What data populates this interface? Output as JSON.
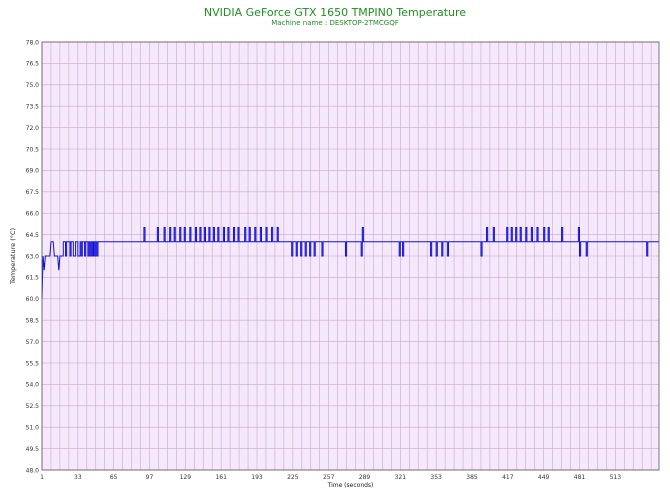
{
  "chart_data": {
    "type": "line",
    "title": "NVIDIA GeForce GTX 1650 TMPIN0 Temperature",
    "subtitle": "Machine name : DESKTOP-2TMCGQF",
    "xlabel": "Time (seconds)",
    "ylabel": "Temperature (°C)",
    "xlim": [
      1,
      552
    ],
    "ylim": [
      48.0,
      78.0
    ],
    "x_ticks": [
      "1",
      "33",
      "65",
      "97",
      "129",
      "161",
      "193",
      "225",
      "257",
      "289",
      "321",
      "353",
      "385",
      "417",
      "449",
      "481",
      "513"
    ],
    "y_ticks": [
      "48.0",
      "49.5",
      "51.0",
      "52.5",
      "54.0",
      "55.5",
      "57.0",
      "58.5",
      "60.0",
      "61.5",
      "63.0",
      "64.5",
      "66.0",
      "67.5",
      "69.0",
      "70.5",
      "72.0",
      "73.5",
      "75.0",
      "76.5",
      "78.0"
    ],
    "grid": true,
    "colors": {
      "background": "#f6e8fb",
      "grid": "#c9a8cf",
      "line": "#1010d8",
      "title": "#1f8f1f"
    },
    "series": [
      {
        "baseline": 64.0,
        "start": [
          [
            1,
            60.0
          ],
          [
            2,
            63.0
          ],
          [
            3,
            62.0
          ],
          [
            4,
            63.0
          ],
          [
            5,
            63.0
          ],
          [
            8,
            63.0
          ],
          [
            9,
            64.0
          ],
          [
            11,
            64.0
          ],
          [
            12,
            63.0
          ],
          [
            15,
            63.0
          ],
          [
            16,
            62.0
          ],
          [
            17,
            63.0
          ]
        ],
        "dips_to_63": [
          [
            17,
            20
          ],
          [
            22,
            23
          ],
          [
            26,
            27
          ],
          [
            29,
            31
          ],
          [
            33,
            35
          ],
          [
            36,
            37
          ],
          [
            39,
            40
          ],
          [
            42,
            43
          ],
          [
            44,
            45
          ],
          [
            46,
            47
          ],
          [
            48,
            49
          ],
          [
            50,
            51
          ],
          [
            224,
            225
          ],
          [
            228,
            229
          ],
          [
            232,
            233
          ],
          [
            236,
            237
          ],
          [
            240,
            241
          ],
          [
            244,
            245
          ],
          [
            251,
            252
          ],
          [
            272,
            273
          ],
          [
            286,
            287
          ],
          [
            320,
            321
          ],
          [
            323,
            324
          ],
          [
            348,
            349
          ],
          [
            353,
            354
          ],
          [
            358,
            359
          ],
          [
            363,
            364
          ],
          [
            393,
            394
          ],
          [
            481,
            482
          ],
          [
            487,
            488
          ],
          [
            541,
            542
          ]
        ],
        "spikes_to_65": [
          [
            92,
            93
          ],
          [
            104,
            105
          ],
          [
            110,
            111
          ],
          [
            115,
            116
          ],
          [
            119,
            120
          ],
          [
            124,
            125
          ],
          [
            128,
            129
          ],
          [
            133,
            134
          ],
          [
            138,
            139
          ],
          [
            142,
            143
          ],
          [
            146,
            147
          ],
          [
            150,
            151
          ],
          [
            154,
            155
          ],
          [
            158,
            159
          ],
          [
            163,
            164
          ],
          [
            167,
            168
          ],
          [
            172,
            173
          ],
          [
            176,
            177
          ],
          [
            182,
            183
          ],
          [
            186,
            187
          ],
          [
            191,
            192
          ],
          [
            196,
            197
          ],
          [
            201,
            202
          ],
          [
            206,
            207
          ],
          [
            211,
            212
          ],
          [
            287,
            288
          ],
          [
            398,
            399
          ],
          [
            404,
            405
          ],
          [
            416,
            417
          ],
          [
            420,
            421
          ],
          [
            424,
            425
          ],
          [
            428,
            429
          ],
          [
            433,
            434
          ],
          [
            438,
            439
          ],
          [
            443,
            444
          ],
          [
            449,
            450
          ],
          [
            453,
            454
          ],
          [
            465,
            466
          ],
          [
            480,
            481
          ]
        ]
      }
    ]
  }
}
